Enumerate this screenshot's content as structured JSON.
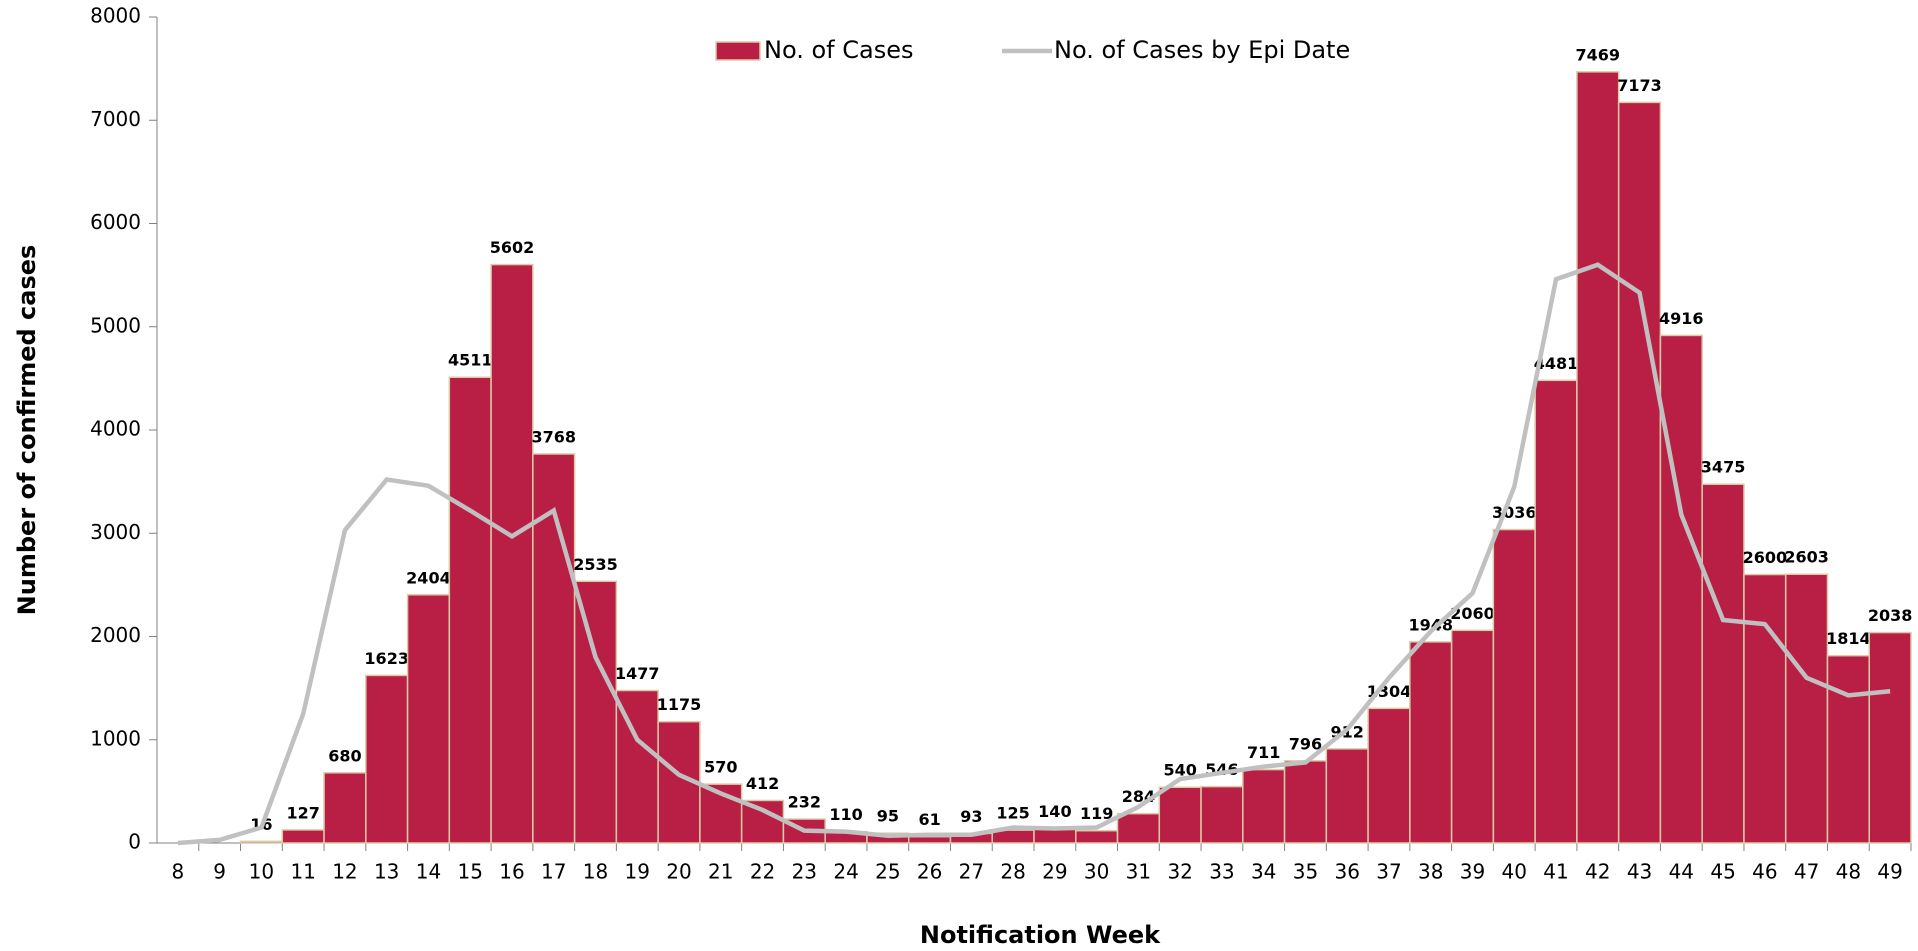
{
  "chart_data": {
    "type": "bar",
    "xlabel": "Notification Week",
    "ylabel": "Number of confirmed cases",
    "categories": [
      "8",
      "9",
      "10",
      "11",
      "12",
      "13",
      "14",
      "15",
      "16",
      "17",
      "18",
      "19",
      "20",
      "21",
      "22",
      "23",
      "24",
      "25",
      "26",
      "27",
      "28",
      "29",
      "30",
      "31",
      "32",
      "33",
      "34",
      "35",
      "36",
      "37",
      "38",
      "39",
      "40",
      "41",
      "42",
      "43",
      "44",
      "45",
      "46",
      "47",
      "48",
      "49"
    ],
    "series": [
      {
        "name": "No. of Cases",
        "type": "bar",
        "color": "#b91f45",
        "values": [
          null,
          null,
          16,
          127,
          680,
          1623,
          2404,
          4511,
          5602,
          3768,
          2535,
          1477,
          1175,
          570,
          412,
          232,
          110,
          95,
          61,
          93,
          125,
          140,
          119,
          284,
          540,
          546,
          711,
          796,
          912,
          1304,
          1948,
          2060,
          3036,
          4481,
          7469,
          7173,
          4916,
          3475,
          2600,
          2603,
          1814,
          2038
        ]
      },
      {
        "name": "No. of Cases by Epi Date",
        "type": "line",
        "color": "#c0c0c0",
        "values": [
          0,
          30,
          150,
          1250,
          3030,
          3520,
          3460,
          3220,
          2970,
          3220,
          1800,
          1000,
          660,
          480,
          320,
          120,
          110,
          70,
          80,
          80,
          150,
          140,
          150,
          350,
          620,
          680,
          740,
          780,
          1100,
          1600,
          2050,
          2420,
          3450,
          5460,
          5600,
          5330,
          3180,
          2160,
          2120,
          1600,
          1430,
          1470
        ]
      }
    ],
    "ylim": [
      0,
      8000
    ],
    "yticks": [
      0,
      1000,
      2000,
      3000,
      4000,
      5000,
      6000,
      7000,
      8000
    ],
    "grid": false
  }
}
